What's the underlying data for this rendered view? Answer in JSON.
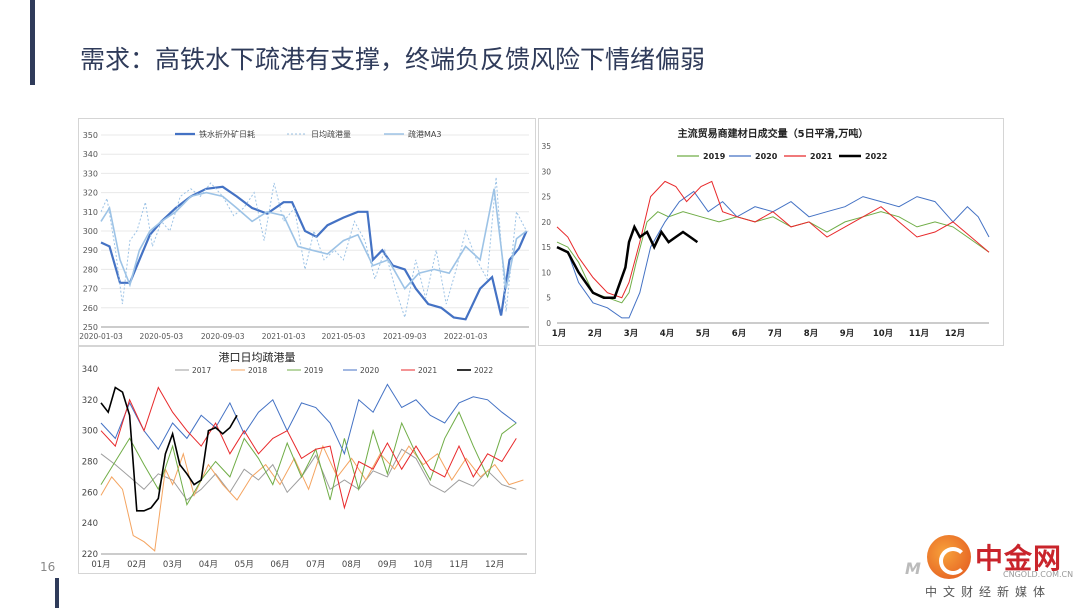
{
  "header": {
    "title": "需求：高铁水下疏港有支撑，终端负反馈风险下情绪偏弱",
    "page_number": "16"
  },
  "logo": {
    "name": "中金网",
    "site": "CNGOLD.COM.CN",
    "tagline": "中文财经新媒体"
  },
  "colors": {
    "blue_dark": "#4472c4",
    "blue_light": "#9dc3e6",
    "green": "#70ad47",
    "red": "#e8292b",
    "black": "#000000",
    "gray": "#9e9e9e",
    "orange": "#f4a460"
  },
  "chart_data": [
    {
      "id": "chart1",
      "type": "line",
      "title": "",
      "legend": [
        "铁水折外矿日耗",
        "日均疏港量",
        "疏港MA3"
      ],
      "legend_position": "top",
      "x_ticks": [
        "2020-01-03",
        "2020-05-03",
        "2020-09-03",
        "2021-01-03",
        "2021-05-03",
        "2021-09-03",
        "2022-01-03"
      ],
      "x_range": [
        "2020-01-03",
        "2022-05-10"
      ],
      "y_ticks": [
        250,
        260,
        270,
        280,
        290,
        300,
        310,
        320,
        330,
        340,
        350
      ],
      "ylim": [
        250,
        350
      ],
      "grid": "horizontal",
      "series": [
        {
          "name": "铁水折外矿日耗",
          "x": [
            "2020-01-03",
            "2020-01-20",
            "2020-02-10",
            "2020-03-01",
            "2020-03-20",
            "2020-04-10",
            "2020-05-03",
            "2020-06-01",
            "2020-07-01",
            "2020-08-01",
            "2020-09-03",
            "2020-10-01",
            "2020-11-01",
            "2020-12-01",
            "2021-01-03",
            "2021-01-20",
            "2021-02-15",
            "2021-03-10",
            "2021-04-01",
            "2021-05-03",
            "2021-06-01",
            "2021-06-20",
            "2021-07-01",
            "2021-07-20",
            "2021-08-10",
            "2021-09-03",
            "2021-09-25",
            "2021-10-20",
            "2021-11-15",
            "2021-12-10",
            "2022-01-03",
            "2022-02-01",
            "2022-02-25",
            "2022-03-15",
            "2022-04-01",
            "2022-04-20",
            "2022-05-05"
          ],
          "values": [
            294,
            292,
            273,
            273,
            285,
            298,
            305,
            312,
            318,
            322,
            323,
            318,
            312,
            309,
            315,
            315,
            300,
            297,
            303,
            307,
            310,
            310,
            285,
            290,
            282,
            280,
            270,
            262,
            260,
            255,
            254,
            270,
            276,
            256,
            285,
            291,
            300
          ]
        },
        {
          "name": "日均疏港量",
          "x": [
            "2020-01-03",
            "2020-01-15",
            "2020-02-01",
            "2020-02-15",
            "2020-03-01",
            "2020-03-15",
            "2020-04-01",
            "2020-04-15",
            "2020-05-03",
            "2020-05-20",
            "2020-06-10",
            "2020-07-01",
            "2020-07-20",
            "2020-08-10",
            "2020-09-03",
            "2020-09-25",
            "2020-10-15",
            "2020-11-05",
            "2020-11-25",
            "2020-12-15",
            "2021-01-03",
            "2021-01-25",
            "2021-02-15",
            "2021-03-05",
            "2021-03-25",
            "2021-04-15",
            "2021-05-03",
            "2021-05-25",
            "2021-06-15",
            "2021-07-05",
            "2021-07-25",
            "2021-08-15",
            "2021-09-03",
            "2021-09-25",
            "2021-10-15",
            "2021-11-05",
            "2021-11-25",
            "2021-12-15",
            "2022-01-03",
            "2022-01-25",
            "2022-02-15",
            "2022-03-05",
            "2022-03-25",
            "2022-04-15",
            "2022-05-05"
          ],
          "values": [
            310,
            317,
            290,
            262,
            295,
            300,
            315,
            292,
            305,
            300,
            318,
            322,
            318,
            325,
            318,
            308,
            312,
            320,
            295,
            325,
            305,
            312,
            280,
            300,
            285,
            290,
            285,
            305,
            295,
            275,
            290,
            270,
            255,
            285,
            265,
            290,
            262,
            280,
            300,
            285,
            275,
            328,
            258,
            310,
            300
          ]
        },
        {
          "name": "疏港MA3",
          "x": [
            "2020-01-03",
            "2020-01-20",
            "2020-02-10",
            "2020-03-01",
            "2020-03-20",
            "2020-04-10",
            "2020-05-03",
            "2020-06-01",
            "2020-07-01",
            "2020-08-01",
            "2020-09-03",
            "2020-10-01",
            "2020-11-01",
            "2020-12-01",
            "2021-01-03",
            "2021-02-01",
            "2021-03-01",
            "2021-04-01",
            "2021-05-03",
            "2021-06-01",
            "2021-07-01",
            "2021-08-01",
            "2021-09-03",
            "2021-10-01",
            "2021-11-01",
            "2021-12-01",
            "2022-01-03",
            "2022-02-01",
            "2022-03-01",
            "2022-03-25",
            "2022-04-15",
            "2022-05-05"
          ],
          "values": [
            305,
            312,
            285,
            272,
            290,
            300,
            305,
            310,
            318,
            320,
            318,
            312,
            305,
            310,
            308,
            292,
            290,
            288,
            295,
            298,
            282,
            285,
            270,
            278,
            280,
            278,
            292,
            285,
            322,
            270,
            296,
            300
          ]
        }
      ]
    },
    {
      "id": "chart2",
      "type": "line",
      "title": "主流贸易商建材日成交量（5日平滑,万吨）",
      "legend": [
        "2019",
        "2020",
        "2021",
        "2022"
      ],
      "legend_position": "top",
      "categories": [
        "1月",
        "2月",
        "3月",
        "4月",
        "5月",
        "6月",
        "7月",
        "8月",
        "9月",
        "10月",
        "11月",
        "12月"
      ],
      "y_ticks": [
        0,
        5,
        10,
        15,
        20,
        25,
        30,
        35
      ],
      "ylim": [
        0,
        35
      ],
      "x_unit": "month index (1 = 1月)",
      "series": [
        {
          "name": "2019",
          "x": [
            1.0,
            1.3,
            1.6,
            2.0,
            2.4,
            2.8,
            3.0,
            3.2,
            3.5,
            3.8,
            4.1,
            4.5,
            5.0,
            5.5,
            6.0,
            6.5,
            7.0,
            7.5,
            8.0,
            8.5,
            9.0,
            9.5,
            10.0,
            10.5,
            11.0,
            11.5,
            12.0,
            12.4,
            12.8,
            13.0
          ],
          "values": [
            16,
            15,
            12,
            6,
            5,
            4,
            6,
            12,
            20,
            22,
            21,
            22,
            21,
            20,
            21,
            20,
            21,
            19,
            20,
            18,
            20,
            21,
            22,
            21,
            19,
            20,
            19,
            17,
            15,
            14
          ]
        },
        {
          "name": "2020",
          "x": [
            1.0,
            1.3,
            1.6,
            2.0,
            2.4,
            2.8,
            3.0,
            3.3,
            3.6,
            4.0,
            4.4,
            4.8,
            5.2,
            5.6,
            6.0,
            6.5,
            7.0,
            7.5,
            8.0,
            8.5,
            9.0,
            9.5,
            10.0,
            10.5,
            11.0,
            11.5,
            12.0,
            12.4,
            12.7,
            13.0
          ],
          "values": [
            15,
            14,
            8,
            4,
            3,
            1,
            1,
            6,
            15,
            20,
            24,
            26,
            22,
            24,
            21,
            23,
            22,
            24,
            21,
            22,
            23,
            25,
            24,
            23,
            25,
            24,
            20,
            23,
            21,
            17
          ]
        },
        {
          "name": "2021",
          "x": [
            1.0,
            1.3,
            1.6,
            2.0,
            2.4,
            2.8,
            3.0,
            3.3,
            3.6,
            4.0,
            4.3,
            4.6,
            5.0,
            5.3,
            5.6,
            6.0,
            6.5,
            7.0,
            7.5,
            8.0,
            8.5,
            9.0,
            9.5,
            10.0,
            10.5,
            11.0,
            11.5,
            12.0,
            12.5,
            13.0
          ],
          "values": [
            19,
            17,
            13,
            9,
            6,
            5,
            8,
            16,
            25,
            28,
            27,
            24,
            27,
            28,
            22,
            21,
            20,
            22,
            19,
            20,
            17,
            19,
            21,
            23,
            20,
            17,
            18,
            20,
            17,
            14
          ]
        },
        {
          "name": "2022",
          "x": [
            1.0,
            1.3,
            1.6,
            2.0,
            2.3,
            2.6,
            2.9,
            3.0,
            3.15,
            3.3,
            3.5,
            3.7,
            3.9,
            4.1,
            4.3,
            4.5,
            4.7,
            4.9
          ],
          "values": [
            15,
            14,
            10,
            6,
            5,
            5,
            11,
            16,
            19,
            17,
            18,
            15,
            18,
            16,
            17,
            18,
            17,
            16
          ]
        }
      ]
    },
    {
      "id": "chart3",
      "type": "line",
      "title": "港口日均疏港量",
      "legend": [
        "2017",
        "2018",
        "2019",
        "2020",
        "2021",
        "2022"
      ],
      "legend_position": "top",
      "categories": [
        "01月",
        "02月",
        "03月",
        "04月",
        "05月",
        "06月",
        "07月",
        "08月",
        "09月",
        "10月",
        "11月",
        "12月"
      ],
      "y_ticks": [
        220,
        240,
        260,
        280,
        300,
        320,
        340
      ],
      "ylim": [
        220,
        340
      ],
      "x_unit": "month index (1 = 01月)",
      "series": [
        {
          "name": "2017",
          "x": [
            1.0,
            1.4,
            1.8,
            2.2,
            2.6,
            3.0,
            3.4,
            3.8,
            4.2,
            4.6,
            5.0,
            5.4,
            5.8,
            6.2,
            6.6,
            7.0,
            7.4,
            7.8,
            8.2,
            8.6,
            9.0,
            9.4,
            9.8,
            10.2,
            10.6,
            11.0,
            11.4,
            11.8,
            12.2,
            12.6
          ],
          "values": [
            285,
            278,
            270,
            262,
            272,
            268,
            255,
            262,
            272,
            260,
            275,
            268,
            278,
            260,
            270,
            284,
            262,
            268,
            262,
            274,
            270,
            288,
            282,
            265,
            260,
            268,
            264,
            274,
            265,
            262
          ]
        },
        {
          "name": "2018",
          "x": [
            1.0,
            1.3,
            1.6,
            1.9,
            2.2,
            2.5,
            2.8,
            3.0,
            3.3,
            3.6,
            4.0,
            4.4,
            4.8,
            5.2,
            5.6,
            6.0,
            6.4,
            6.8,
            7.2,
            7.6,
            8.0,
            8.4,
            8.8,
            9.2,
            9.6,
            10.0,
            10.4,
            10.8,
            11.2,
            11.6,
            12.0,
            12.4,
            12.8
          ],
          "values": [
            258,
            270,
            262,
            232,
            228,
            222,
            275,
            265,
            285,
            258,
            278,
            265,
            255,
            270,
            278,
            265,
            282,
            262,
            290,
            270,
            282,
            268,
            285,
            275,
            290,
            278,
            285,
            268,
            282,
            270,
            278,
            265,
            268
          ]
        },
        {
          "name": "2019",
          "x": [
            1.0,
            1.4,
            1.8,
            2.2,
            2.6,
            3.0,
            3.4,
            3.8,
            4.2,
            4.6,
            5.0,
            5.4,
            5.8,
            6.2,
            6.6,
            7.0,
            7.4,
            7.8,
            8.2,
            8.6,
            9.0,
            9.4,
            9.8,
            10.2,
            10.6,
            11.0,
            11.4,
            11.8,
            12.2,
            12.6
          ],
          "values": [
            265,
            280,
            295,
            278,
            262,
            290,
            252,
            268,
            280,
            270,
            295,
            282,
            265,
            292,
            270,
            288,
            255,
            295,
            262,
            300,
            272,
            305,
            285,
            268,
            295,
            312,
            290,
            270,
            298,
            305
          ]
        },
        {
          "name": "2020",
          "x": [
            1.0,
            1.4,
            1.8,
            2.2,
            2.6,
            3.0,
            3.4,
            3.8,
            4.2,
            4.6,
            5.0,
            5.4,
            5.8,
            6.2,
            6.6,
            7.0,
            7.4,
            7.8,
            8.2,
            8.6,
            9.0,
            9.4,
            9.8,
            10.2,
            10.6,
            11.0,
            11.4,
            11.8,
            12.2,
            12.6
          ],
          "values": [
            305,
            295,
            318,
            300,
            288,
            305,
            295,
            310,
            302,
            318,
            298,
            312,
            320,
            300,
            318,
            315,
            305,
            285,
            320,
            312,
            330,
            315,
            320,
            310,
            305,
            318,
            322,
            320,
            312,
            305
          ]
        },
        {
          "name": "2021",
          "x": [
            1.0,
            1.4,
            1.8,
            2.2,
            2.6,
            3.0,
            3.4,
            3.8,
            4.2,
            4.6,
            5.0,
            5.4,
            5.8,
            6.2,
            6.6,
            7.0,
            7.4,
            7.8,
            8.2,
            8.6,
            9.0,
            9.4,
            9.8,
            10.2,
            10.6,
            11.0,
            11.4,
            11.8,
            12.2,
            12.6
          ],
          "values": [
            300,
            290,
            320,
            300,
            328,
            312,
            300,
            290,
            305,
            285,
            300,
            285,
            295,
            300,
            282,
            288,
            290,
            250,
            280,
            275,
            292,
            275,
            290,
            275,
            270,
            290,
            270,
            285,
            280,
            295
          ]
        },
        {
          "name": "2022",
          "x": [
            1.0,
            1.2,
            1.4,
            1.6,
            1.8,
            2.0,
            2.2,
            2.4,
            2.6,
            2.8,
            3.0,
            3.2,
            3.4,
            3.6,
            3.8,
            4.0,
            4.2,
            4.4,
            4.6,
            4.8
          ],
          "values": [
            318,
            312,
            328,
            325,
            310,
            248,
            248,
            250,
            256,
            285,
            298,
            278,
            272,
            265,
            268,
            300,
            302,
            298,
            302,
            310
          ]
        }
      ]
    }
  ]
}
